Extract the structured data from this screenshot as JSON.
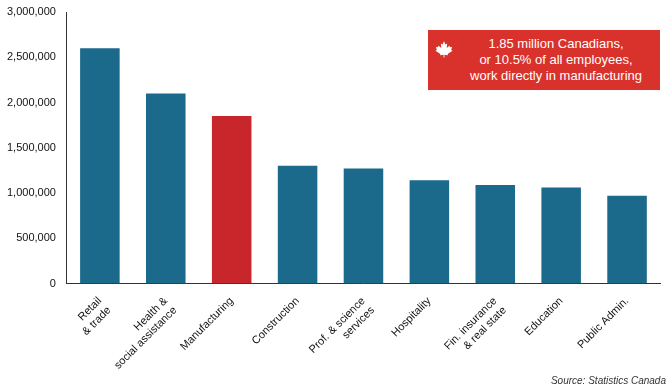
{
  "chart_data": {
    "type": "bar",
    "categories": [
      "Retail\n& trade",
      "Health &\nsocial assistance",
      "Manufacturing",
      "Construction",
      "Prof. & science\nservices",
      "Hospitality",
      "Fin. insurance\n& real state",
      "Education",
      "Public Admin."
    ],
    "values": [
      2600000,
      2100000,
      1850000,
      1300000,
      1270000,
      1140000,
      1090000,
      1060000,
      970000
    ],
    "colors": [
      "#1b6a8c",
      "#1b6a8c",
      "#c8262a",
      "#1b6a8c",
      "#1b6a8c",
      "#1b6a8c",
      "#1b6a8c",
      "#1b6a8c",
      "#1b6a8c"
    ],
    "ylim": [
      0,
      3000000
    ],
    "yticks": [
      0,
      {
        "value": 500000,
        "label": "500,000"
      },
      {
        "value": 1000000,
        "label": "1,000,000"
      },
      {
        "value": 1500000,
        "label": "1,500,000"
      },
      {
        "value": 2000000,
        "label": "2,000,000"
      },
      {
        "value": 2500000,
        "label": "2,500,000"
      },
      {
        "value": 3000000,
        "label": "3,000,000"
      }
    ],
    "grid": false,
    "annotation": "1.85 million Canadians,\nor 10.5% of all employees,\nwork directly in manufacturing",
    "source": "Source: Statistics Canada"
  }
}
